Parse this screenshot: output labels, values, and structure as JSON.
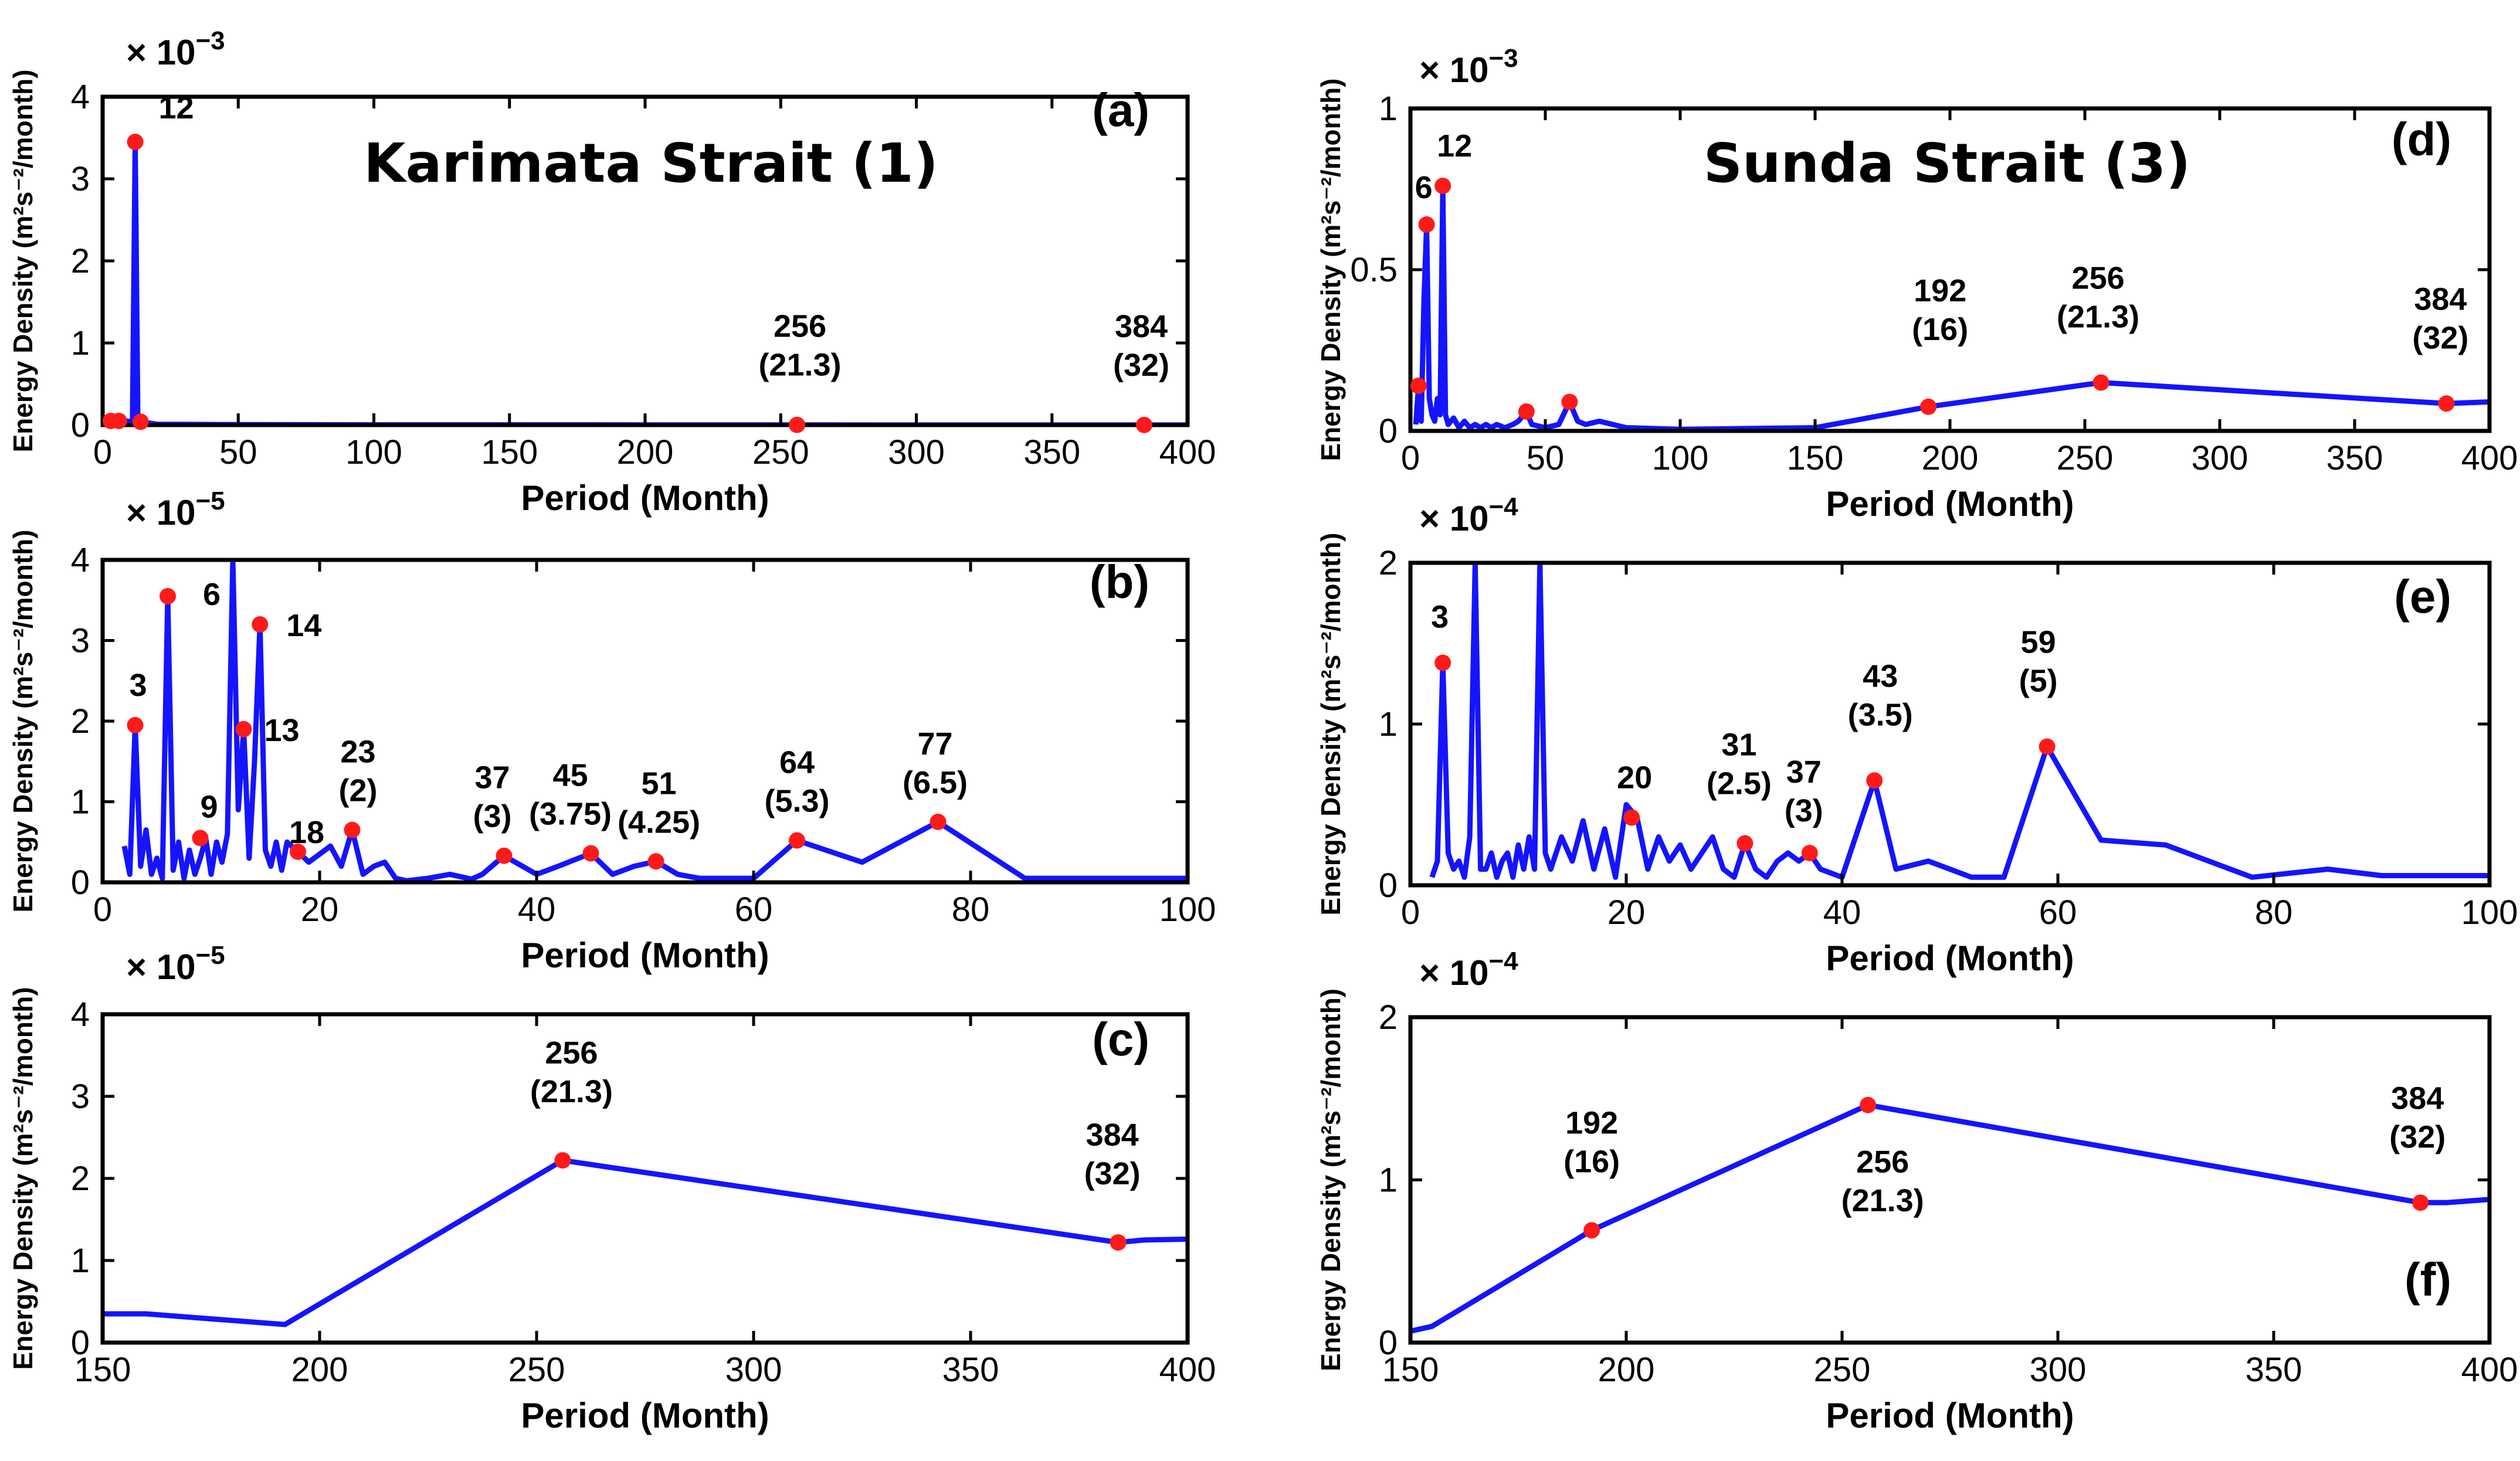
{
  "chart_data": [
    {
      "panel": "a",
      "type": "line",
      "title": "Karimata Strait (1)",
      "xlabel": "Period (Month)",
      "ylabel": "Energy Density (m²s⁻²/month)",
      "multiplier": "× 10",
      "exponent": "−3",
      "xlim": [
        0,
        400
      ],
      "ylim": [
        0,
        4
      ],
      "xticks": [
        0,
        50,
        100,
        150,
        200,
        250,
        300,
        350,
        400
      ],
      "yticks": [
        0,
        1,
        2,
        3,
        4
      ],
      "series": [
        {
          "x": [
            2,
            3,
            4,
            5,
            6,
            7,
            8,
            9,
            10,
            11,
            12,
            13,
            14,
            20,
            50,
            100,
            150,
            200,
            256,
            300,
            350,
            384,
            400
          ],
          "y": [
            0.02,
            0.05,
            0.04,
            0.06,
            0.05,
            0.04,
            0.03,
            0.05,
            0.04,
            0.06,
            3.45,
            0.05,
            0.04,
            0.01,
            0.005,
            0.003,
            0.003,
            0.002,
            0.002,
            0.001,
            0.001,
            0.001,
            0.001
          ]
        }
      ],
      "markers": [
        {
          "x": 3,
          "y": 0.05
        },
        {
          "x": 6,
          "y": 0.05
        },
        {
          "x": 12,
          "y": 3.45
        },
        {
          "x": 14,
          "y": 0.04
        },
        {
          "x": 256,
          "y": 0.002
        },
        {
          "x": 384,
          "y": 0.001
        }
      ],
      "annotations": [
        {
          "lines": [
            "12"
          ]
        },
        {
          "lines": [
            "256",
            "(21.3)"
          ]
        },
        {
          "lines": [
            "384",
            "(32)"
          ]
        }
      ]
    },
    {
      "panel": "b",
      "type": "line",
      "xlabel": "Period (Month)",
      "ylabel": "Energy Density (m²s⁻²/month)",
      "multiplier": "× 10",
      "exponent": "−5",
      "xlim": [
        0,
        100
      ],
      "ylim": [
        0,
        4
      ],
      "xticks": [
        0,
        20,
        40,
        60,
        80,
        100
      ],
      "yticks": [
        0,
        1,
        2,
        3,
        4
      ],
      "series": [
        {
          "x": [
            2,
            2.5,
            3,
            3.5,
            4,
            4.5,
            5,
            5.5,
            6,
            6.5,
            7,
            7.5,
            8,
            8.5,
            9,
            9.5,
            10,
            10.5,
            11,
            11.5,
            12,
            12.5,
            13,
            13.5,
            14,
            14.5,
            15,
            15.5,
            16,
            16.5,
            17,
            18,
            19,
            20,
            21,
            22,
            23,
            24,
            25,
            26,
            27,
            28,
            30,
            32,
            34,
            35,
            37,
            40,
            42,
            45,
            47,
            49,
            51,
            53,
            55,
            60,
            64,
            70,
            77,
            85,
            90,
            100
          ],
          "y": [
            0.45,
            0.1,
            1.95,
            0.2,
            0.65,
            0.1,
            0.3,
            0.05,
            3.55,
            0.15,
            0.5,
            0.05,
            0.4,
            0.1,
            0.3,
            0.55,
            0.1,
            0.5,
            0.25,
            0.6,
            4.0,
            0.9,
            1.9,
            0.3,
            1.5,
            3.2,
            0.4,
            0.2,
            0.5,
            0.15,
            0.5,
            0.38,
            0.25,
            0.35,
            0.45,
            0.2,
            0.65,
            0.1,
            0.2,
            0.25,
            0.05,
            0.02,
            0.05,
            0.1,
            0.04,
            0.1,
            0.33,
            0.1,
            0.2,
            0.36,
            0.1,
            0.2,
            0.26,
            0.1,
            0.05,
            0.05,
            0.52,
            0.25,
            0.75,
            0.05,
            0.05,
            0.05
          ]
        }
      ],
      "markers": [
        {
          "x": 3,
          "y": 1.95
        },
        {
          "x": 6,
          "y": 3.55
        },
        {
          "x": 9,
          "y": 0.55
        },
        {
          "x": 13,
          "y": 1.9
        },
        {
          "x": 14.5,
          "y": 3.2
        },
        {
          "x": 18,
          "y": 0.38
        },
        {
          "x": 23,
          "y": 0.65
        },
        {
          "x": 37,
          "y": 0.33
        },
        {
          "x": 45,
          "y": 0.36
        },
        {
          "x": 51,
          "y": 0.26
        },
        {
          "x": 64,
          "y": 0.52
        },
        {
          "x": 77,
          "y": 0.75
        }
      ],
      "annotations": [
        {
          "lines": [
            "3"
          ]
        },
        {
          "lines": [
            "6"
          ]
        },
        {
          "lines": [
            "9"
          ]
        },
        {
          "lines": [
            "13"
          ]
        },
        {
          "lines": [
            "14"
          ]
        },
        {
          "lines": [
            "18"
          ]
        },
        {
          "lines": [
            "23",
            "(2)"
          ]
        },
        {
          "lines": [
            "37",
            "(3)"
          ]
        },
        {
          "lines": [
            "45",
            "(3.75)"
          ]
        },
        {
          "lines": [
            "51",
            "(4.25)"
          ]
        },
        {
          "lines": [
            "64",
            "(5.3)"
          ]
        },
        {
          "lines": [
            "77",
            "(6.5)"
          ]
        }
      ]
    },
    {
      "panel": "c",
      "type": "line",
      "xlabel": "Period (Month)",
      "ylabel": "Energy Density (m²s⁻²/month)",
      "multiplier": "× 10",
      "exponent": "−5",
      "xlim": [
        150,
        400
      ],
      "ylim": [
        0,
        4
      ],
      "xticks": [
        150,
        200,
        250,
        300,
        350,
        400
      ],
      "yticks": [
        0,
        1,
        2,
        3,
        4
      ],
      "series": [
        {
          "x": [
            150,
            160,
            192,
            256,
            384,
            390,
            400
          ],
          "y": [
            0.35,
            0.35,
            0.22,
            2.22,
            1.22,
            1.25,
            1.26
          ]
        }
      ],
      "markers": [
        {
          "x": 256,
          "y": 2.22
        },
        {
          "x": 384,
          "y": 1.22
        }
      ],
      "annotations": [
        {
          "lines": [
            "256",
            "(21.3)"
          ]
        },
        {
          "lines": [
            "384",
            "(32)"
          ]
        }
      ]
    },
    {
      "panel": "d",
      "type": "line",
      "title": "Sunda Strait (3)",
      "xlabel": "Period (Month)",
      "ylabel": "Energy Density (m²s⁻²/month)",
      "multiplier": "× 10",
      "exponent": "−3",
      "xlim": [
        0,
        400
      ],
      "ylim": [
        0,
        1
      ],
      "xticks": [
        0,
        50,
        100,
        150,
        200,
        250,
        300,
        350,
        400
      ],
      "yticks": [
        0,
        0.5,
        1
      ],
      "series": [
        {
          "x": [
            2,
            3,
            4,
            5,
            6,
            7,
            8,
            9,
            10,
            11,
            12,
            13,
            14,
            16,
            18,
            20,
            22,
            24,
            26,
            28,
            30,
            32,
            35,
            38,
            40,
            43,
            45,
            50,
            55,
            59,
            62,
            65,
            70,
            80,
            100,
            150,
            192,
            256,
            384,
            400
          ],
          "y": [
            0.02,
            0.14,
            0.03,
            0.4,
            0.64,
            0.1,
            0.05,
            0.03,
            0.1,
            0.05,
            0.76,
            0.05,
            0.02,
            0.04,
            0.01,
            0.03,
            0.01,
            0.02,
            0.01,
            0.02,
            0.01,
            0.02,
            0.01,
            0.02,
            0.03,
            0.06,
            0.02,
            0.01,
            0.02,
            0.09,
            0.03,
            0.02,
            0.03,
            0.01,
            0.005,
            0.01,
            0.075,
            0.15,
            0.085,
            0.09
          ]
        }
      ],
      "markers": [
        {
          "x": 3,
          "y": 0.14
        },
        {
          "x": 6,
          "y": 0.64
        },
        {
          "x": 12,
          "y": 0.76
        },
        {
          "x": 43,
          "y": 0.06
        },
        {
          "x": 59,
          "y": 0.09
        },
        {
          "x": 192,
          "y": 0.075
        },
        {
          "x": 256,
          "y": 0.15
        },
        {
          "x": 384,
          "y": 0.085
        }
      ],
      "annotations": [
        {
          "lines": [
            "6"
          ]
        },
        {
          "lines": [
            "12"
          ]
        },
        {
          "lines": [
            "192",
            "(16)"
          ]
        },
        {
          "lines": [
            "256",
            "(21.3)"
          ]
        },
        {
          "lines": [
            "384",
            "(32)"
          ]
        }
      ]
    },
    {
      "panel": "e",
      "type": "line",
      "xlabel": "Period (Month)",
      "ylabel": "Energy Density (m²s⁻²/month)",
      "multiplier": "× 10",
      "exponent": "−4",
      "xlim": [
        0,
        100
      ],
      "ylim": [
        0,
        2
      ],
      "xticks": [
        0,
        20,
        40,
        60,
        80,
        100
      ],
      "yticks": [
        0,
        1,
        2
      ],
      "series": [
        {
          "x": [
            2,
            2.5,
            3,
            3.5,
            4,
            4.5,
            5,
            5.5,
            6,
            6.5,
            7,
            7.5,
            8,
            8.5,
            9,
            9.5,
            10,
            10.5,
            11,
            11.5,
            12,
            12.5,
            13,
            14,
            15,
            16,
            17,
            18,
            19,
            20,
            21,
            22,
            23,
            24,
            25,
            26,
            27,
            28,
            29,
            30,
            31,
            32,
            33,
            34,
            35,
            36,
            37,
            38,
            40,
            43,
            45,
            48,
            52,
            55,
            59,
            64,
            70,
            78,
            85,
            90,
            100
          ],
          "y": [
            0.05,
            0.15,
            1.38,
            0.2,
            0.1,
            0.15,
            0.05,
            0.3,
            2.0,
            0.1,
            0.1,
            0.2,
            0.05,
            0.15,
            0.2,
            0.05,
            0.25,
            0.1,
            0.3,
            0.1,
            2.0,
            0.2,
            0.1,
            0.3,
            0.15,
            0.4,
            0.1,
            0.35,
            0.05,
            0.5,
            0.42,
            0.1,
            0.3,
            0.15,
            0.25,
            0.1,
            0.2,
            0.3,
            0.1,
            0.05,
            0.26,
            0.1,
            0.05,
            0.15,
            0.2,
            0.15,
            0.2,
            0.1,
            0.05,
            0.65,
            0.1,
            0.15,
            0.05,
            0.05,
            0.86,
            0.28,
            0.25,
            0.05,
            0.1,
            0.06,
            0.06
          ]
        }
      ],
      "markers": [
        {
          "x": 3,
          "y": 1.38
        },
        {
          "x": 20.5,
          "y": 0.42
        },
        {
          "x": 31,
          "y": 0.26
        },
        {
          "x": 37,
          "y": 0.2
        },
        {
          "x": 43,
          "y": 0.65
        },
        {
          "x": 59,
          "y": 0.86
        }
      ],
      "annotations": [
        {
          "lines": [
            "3"
          ]
        },
        {
          "lines": [
            "20"
          ]
        },
        {
          "lines": [
            "31",
            "(2.5)"
          ]
        },
        {
          "lines": [
            "37",
            "(3)"
          ]
        },
        {
          "lines": [
            "43",
            "(3.5)"
          ]
        },
        {
          "lines": [
            "59",
            "(5)"
          ]
        }
      ]
    },
    {
      "panel": "f",
      "type": "line",
      "xlabel": "Period (Month)",
      "ylabel": "Energy Density (m²s⁻²/month)",
      "multiplier": "× 10",
      "exponent": "−4",
      "xlim": [
        150,
        400
      ],
      "ylim": [
        0,
        2
      ],
      "xticks": [
        150,
        200,
        250,
        300,
        350,
        400
      ],
      "yticks": [
        0,
        1,
        2
      ],
      "series": [
        {
          "x": [
            150,
            155,
            192,
            256,
            384,
            390,
            400
          ],
          "y": [
            0.07,
            0.1,
            0.69,
            1.46,
            0.86,
            0.86,
            0.88
          ]
        }
      ],
      "markers": [
        {
          "x": 192,
          "y": 0.69
        },
        {
          "x": 256,
          "y": 1.46
        },
        {
          "x": 384,
          "y": 0.86
        }
      ],
      "annotations": [
        {
          "lines": [
            "192",
            "(16)"
          ]
        },
        {
          "lines": [
            "256",
            "(21.3)"
          ]
        },
        {
          "lines": [
            "384",
            "(32)"
          ]
        }
      ]
    }
  ],
  "panel_labels": [
    "(a)",
    "(b)",
    "(c)",
    "(d)",
    "(e)",
    "(f)"
  ],
  "colors": {
    "line": "#1414ff",
    "marker": "#ff1a1a",
    "axis": "#000000"
  }
}
